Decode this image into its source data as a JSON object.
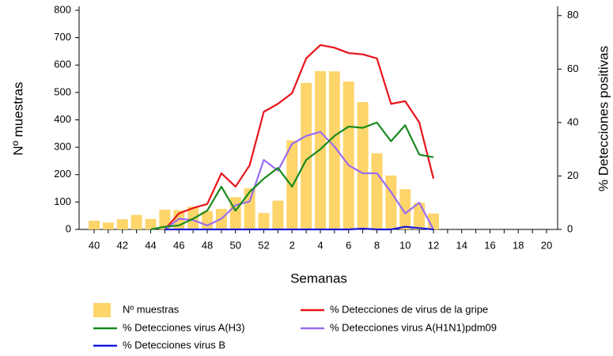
{
  "chart_data": {
    "type": "combo",
    "y_label": "Nº muestras",
    "y2_label": "% Detecciones positivas",
    "x_label": "Semanas",
    "categories": [
      "40",
      null,
      "42",
      null,
      "44",
      null,
      "46",
      null,
      "48",
      null,
      "50",
      null,
      "52",
      null,
      "2",
      null,
      "4",
      null,
      "6",
      null,
      "8",
      null,
      "10",
      null,
      "12",
      null,
      "14",
      null,
      "16",
      null,
      "18",
      null,
      "20"
    ],
    "ylim": [
      0,
      800
    ],
    "yticks": [
      0,
      100,
      200,
      300,
      400,
      500,
      600,
      700,
      800
    ],
    "y2lim": [
      0,
      82
    ],
    "y2ticks": [
      0,
      20,
      40,
      60,
      80
    ],
    "legend": "bottom",
    "series": [
      {
        "name": "Nº muestras",
        "type": "bar",
        "color": "#fdd56b",
        "values": [
          32,
          25,
          37,
          53,
          38,
          72,
          70,
          83,
          67,
          75,
          118,
          150,
          60,
          105,
          325,
          535,
          578,
          577,
          540,
          465,
          278,
          197,
          147,
          97,
          58,
          null,
          null,
          null,
          null,
          null,
          null,
          null,
          null
        ]
      },
      {
        "name": "% Detecciones de virus de la gripe",
        "type": "line",
        "axis": "y2",
        "color": "#e8141a",
        "values": [
          null,
          null,
          null,
          null,
          null,
          0,
          6,
          8,
          9.5,
          21,
          16,
          24,
          44,
          47,
          51,
          64,
          69,
          68,
          66,
          65.5,
          64,
          47,
          48,
          40,
          19,
          null,
          null,
          null,
          null,
          null,
          null,
          null,
          null
        ]
      },
      {
        "name": "% Detecciones virus A(H1N1)pdm09",
        "type": "line",
        "axis": "y2",
        "color": "#9b6cf0",
        "values": [
          null,
          null,
          null,
          null,
          null,
          0,
          4,
          3.5,
          1.5,
          4,
          9,
          10.5,
          26,
          22,
          32,
          35,
          36.5,
          31,
          24,
          21,
          21,
          14,
          6,
          10,
          0,
          null,
          null,
          null,
          null,
          null,
          null,
          null,
          null
        ]
      },
      {
        "name": "% Detecciones virus A(H3)",
        "type": "line",
        "axis": "y2",
        "color": "#188a1e",
        "values": [
          null,
          null,
          null,
          null,
          0,
          1,
          1.5,
          4,
          7,
          16,
          7,
          14,
          19,
          23,
          16,
          26,
          30,
          35,
          38.5,
          38,
          40,
          33,
          39,
          28,
          27,
          null,
          null,
          null,
          null,
          null,
          null,
          null,
          null
        ]
      },
      {
        "name": "% Detecciones virus B",
        "type": "line",
        "axis": "y2",
        "color": "#1a1ad8",
        "values": [
          null,
          null,
          null,
          null,
          null,
          0,
          0,
          0,
          0,
          0,
          0,
          0,
          0,
          0,
          0,
          0,
          0,
          0,
          0,
          0.3,
          0,
          0,
          1,
          0.5,
          0,
          null,
          null,
          null,
          null,
          null,
          null,
          null,
          null
        ]
      }
    ]
  }
}
